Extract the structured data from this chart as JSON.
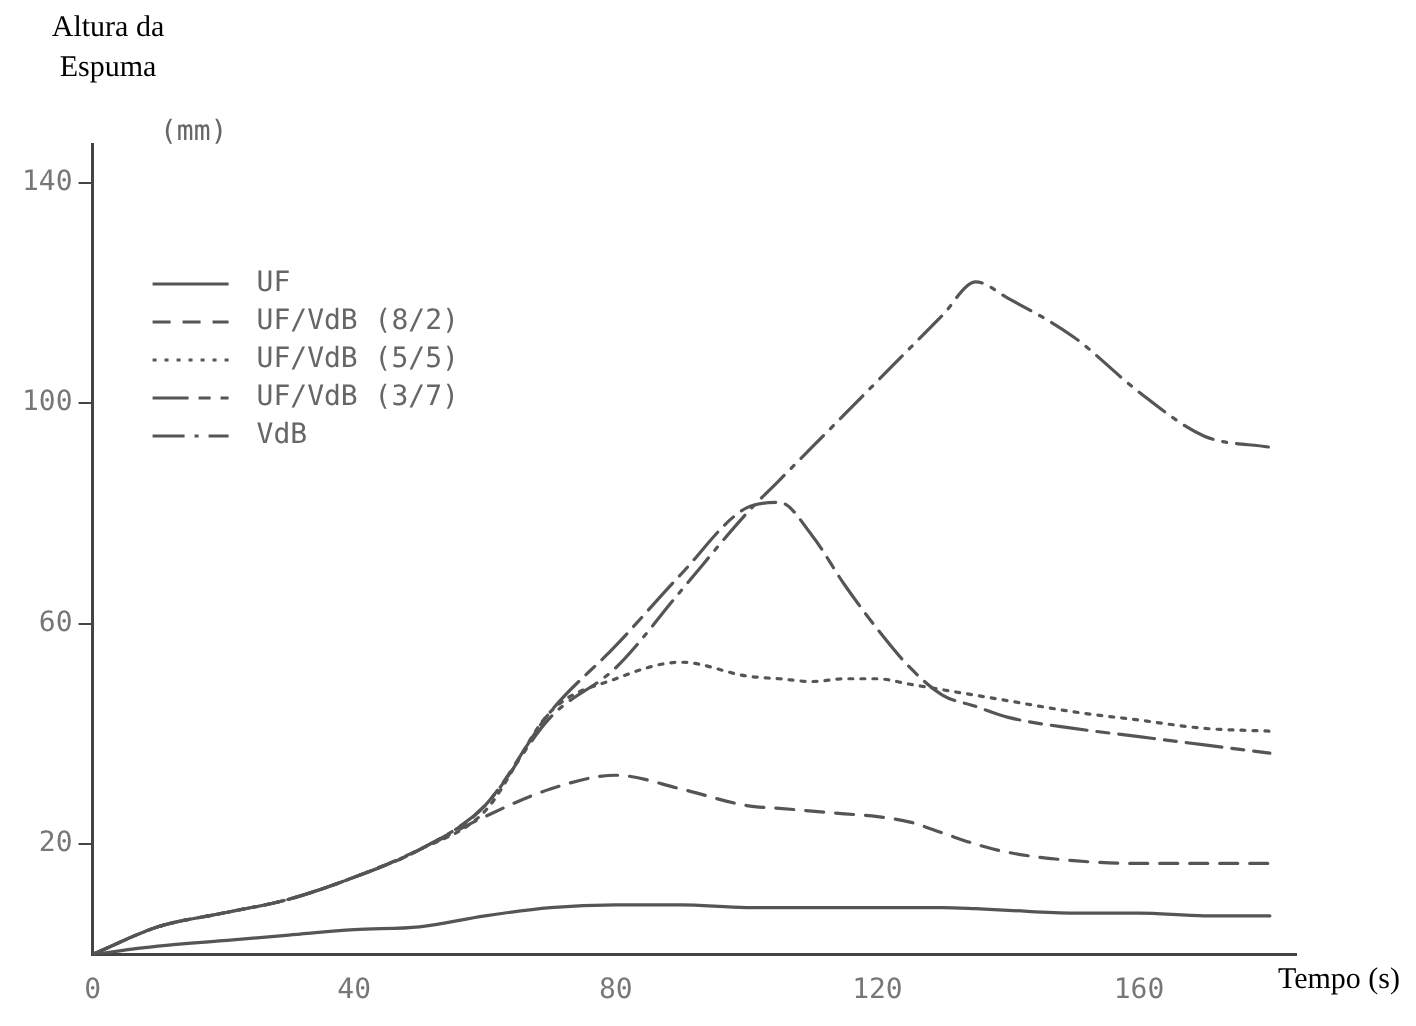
{
  "chart_data": {
    "type": "line",
    "xlabel": "Tempo (s)",
    "ylabel": "Altura da Espuma",
    "annotations": [
      "(mm)"
    ],
    "x": [
      0,
      10,
      20,
      30,
      40,
      50,
      60,
      70,
      80,
      90,
      100,
      105,
      110,
      115,
      120,
      125,
      130,
      135,
      140,
      150,
      160,
      170,
      180
    ],
    "xlim": [
      0,
      184
    ],
    "xticks": [
      0,
      40,
      80,
      120,
      160
    ],
    "ylim": [
      0,
      147
    ],
    "yticks": [
      20,
      60,
      100,
      140
    ],
    "grid": false,
    "legend": "top left",
    "marker": "none",
    "series": [
      {
        "name": "UF",
        "color": "#555555",
        "line_style": "solid",
        "values": [
          0,
          1.5,
          2.5,
          3.5,
          4.5,
          5,
          7,
          8.5,
          9,
          9,
          8.5,
          8.5,
          8.5,
          8.5,
          8.5,
          8.5,
          8.5,
          8.3,
          8,
          7.5,
          7.5,
          7,
          7
        ]
      },
      {
        "name": "UF/VdB (8/2)",
        "color": "#555555",
        "line_style": "dashed",
        "values": [
          0,
          5,
          7.5,
          10,
          14,
          19,
          25,
          30,
          32.5,
          30,
          27,
          26.5,
          26,
          25.5,
          25,
          24,
          22,
          20,
          18.5,
          17,
          16.5,
          16.5,
          16.5
        ]
      },
      {
        "name": "UF/VdB (5/5)",
        "color": "#555555",
        "line_style": "dotted",
        "values": [
          0,
          5,
          7.5,
          10,
          14,
          19,
          26,
          44,
          50,
          53,
          50.5,
          50,
          49.5,
          50,
          50,
          49,
          48,
          47,
          46,
          44,
          42.5,
          41,
          40.5
        ]
      },
      {
        "name": "UF/VdB (3/7)",
        "color": "#555555",
        "line_style": "longdash",
        "values": [
          0,
          5,
          7.5,
          10,
          14,
          19,
          27,
          44,
          56,
          69,
          81,
          82,
          76,
          67,
          59,
          52,
          47,
          45,
          43,
          41,
          39.5,
          38,
          36.5
        ]
      },
      {
        "name": "VdB",
        "color": "#555555",
        "line_style": "dashdot",
        "values": [
          0,
          5,
          7.5,
          10,
          14,
          19,
          27,
          43,
          52,
          66,
          80,
          86,
          92,
          98,
          104,
          110,
          116,
          122,
          119,
          112,
          102,
          94,
          92
        ]
      }
    ]
  }
}
